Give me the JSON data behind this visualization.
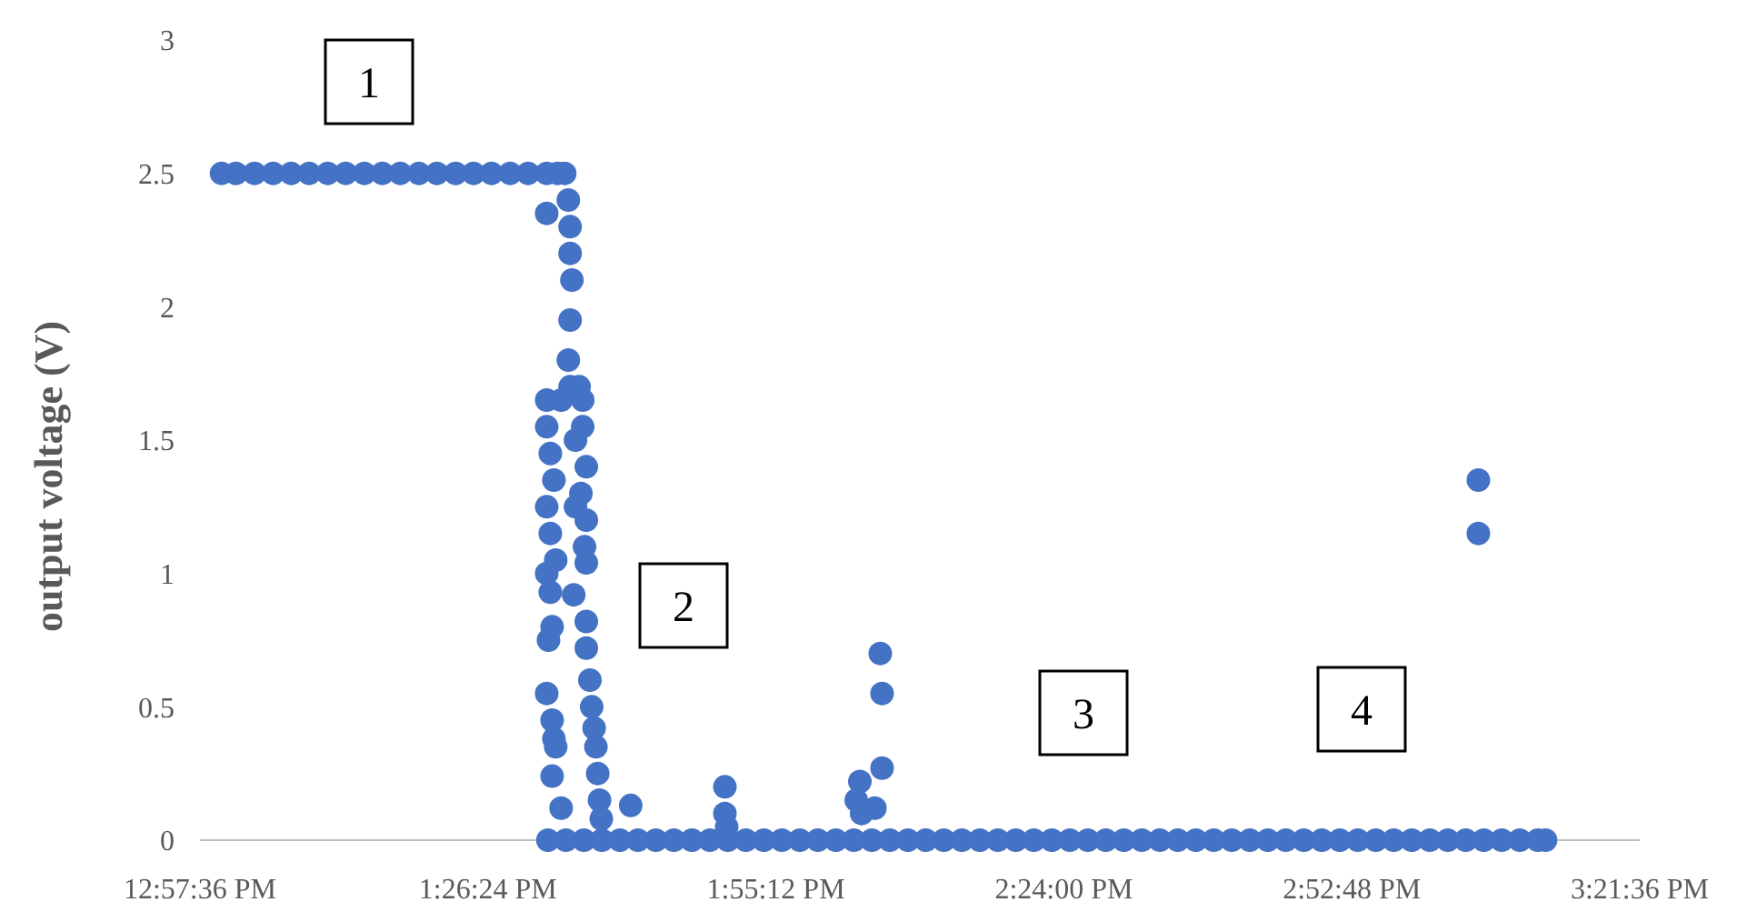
{
  "chart_data": {
    "type": "scatter",
    "ylabel": "output voltage (V)",
    "marker": "circle",
    "grid": false,
    "xlim": [
      12.96,
      15.36
    ],
    "ylim": [
      0,
      3
    ],
    "xticks": [
      {
        "value": 12.96,
        "label": "12:57:36 PM"
      },
      {
        "value": 13.44,
        "label": "1:26:24 PM"
      },
      {
        "value": 13.92,
        "label": "1:55:12 PM"
      },
      {
        "value": 14.4,
        "label": "2:24:00 PM"
      },
      {
        "value": 14.88,
        "label": "2:52:48 PM"
      },
      {
        "value": 15.36,
        "label": "3:21:36 PM"
      }
    ],
    "yticks": [
      0,
      0.5,
      1,
      1.5,
      2,
      2.5,
      3
    ],
    "annotations": [
      "1",
      "2",
      "3",
      "4"
    ],
    "series": [
      {
        "color": "#4472c4",
        "x": [
          12.996,
          13.02,
          13.051,
          13.082,
          13.112,
          13.142,
          13.173,
          13.203,
          13.234,
          13.264,
          13.294,
          13.325,
          13.355,
          13.386,
          13.416,
          13.446,
          13.477,
          13.507,
          13.538,
          13.556,
          13.538,
          13.568,
          13.574,
          13.577,
          13.577,
          13.58,
          13.577,
          13.574,
          13.577,
          13.562,
          13.538,
          13.538,
          13.544,
          13.55,
          13.538,
          13.544,
          13.553,
          13.538,
          13.544,
          13.547,
          13.541,
          13.538,
          13.547,
          13.55,
          13.553,
          13.547,
          13.562,
          13.592,
          13.598,
          13.598,
          13.604,
          13.595,
          13.604,
          13.601,
          13.604,
          13.586,
          13.586,
          13.583,
          13.604,
          13.604,
          13.61,
          13.613,
          13.617,
          13.62,
          13.623,
          13.626,
          13.629,
          13.678,
          13.835,
          13.835,
          13.838,
          14.06,
          14.054,
          14.063,
          14.094,
          14.097,
          14.097,
          14.085,
          15.091,
          15.091,
          13.54,
          13.57,
          13.6,
          13.63,
          13.66,
          13.69,
          13.72,
          13.75,
          13.78,
          13.81,
          13.84,
          13.87,
          13.9,
          13.93,
          13.96,
          13.99,
          14.02,
          14.05,
          14.08,
          14.11,
          14.14,
          14.17,
          14.2,
          14.23,
          14.26,
          14.29,
          14.32,
          14.35,
          14.38,
          14.41,
          14.44,
          14.47,
          14.5,
          14.53,
          14.56,
          14.59,
          14.62,
          14.65,
          14.68,
          14.71,
          14.74,
          14.77,
          14.8,
          14.83,
          14.86,
          14.89,
          14.92,
          14.95,
          14.98,
          15.01,
          15.04,
          15.07,
          15.1,
          15.13,
          15.16,
          15.19,
          15.203
        ],
        "values": [
          2.5,
          2.5,
          2.5,
          2.5,
          2.5,
          2.5,
          2.5,
          2.5,
          2.5,
          2.5,
          2.5,
          2.5,
          2.5,
          2.5,
          2.5,
          2.5,
          2.5,
          2.5,
          2.5,
          2.5,
          2.35,
          2.5,
          2.4,
          2.3,
          2.2,
          2.1,
          1.95,
          1.8,
          1.7,
          1.65,
          1.65,
          1.55,
          1.45,
          1.35,
          1.25,
          1.15,
          1.05,
          1.0,
          0.93,
          0.8,
          0.75,
          0.55,
          0.45,
          0.38,
          0.35,
          0.24,
          0.12,
          1.7,
          1.65,
          1.55,
          1.4,
          1.3,
          1.2,
          1.1,
          1.04,
          1.5,
          1.25,
          0.92,
          0.82,
          0.72,
          0.6,
          0.5,
          0.42,
          0.35,
          0.25,
          0.15,
          0.08,
          0.13,
          0.2,
          0.1,
          0.05,
          0.22,
          0.15,
          0.1,
          0.7,
          0.55,
          0.27,
          0.12,
          1.35,
          1.15,
          0,
          0,
          0,
          0,
          0,
          0,
          0,
          0,
          0,
          0,
          0,
          0,
          0,
          0,
          0,
          0,
          0,
          0,
          0,
          0,
          0,
          0,
          0,
          0,
          0,
          0,
          0,
          0,
          0,
          0,
          0,
          0,
          0,
          0,
          0,
          0,
          0,
          0,
          0,
          0,
          0,
          0,
          0,
          0,
          0,
          0,
          0,
          0,
          0,
          0,
          0,
          0,
          0,
          0,
          0,
          0,
          0
        ]
      }
    ]
  }
}
